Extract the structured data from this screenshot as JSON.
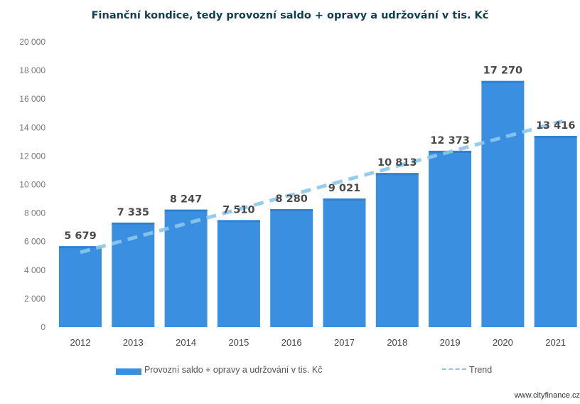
{
  "chart_data": {
    "type": "bar",
    "title": "Finanční kondice, tedy provozní saldo + opravy a udržování v tis. Kč",
    "categories": [
      "2012",
      "2013",
      "2014",
      "2015",
      "2016",
      "2017",
      "2018",
      "2019",
      "2020",
      "2021"
    ],
    "series": [
      {
        "name": "Provozní saldo + opravy a udržování v tis. Kč",
        "values": [
          5679,
          7335,
          8247,
          7510,
          8280,
          9021,
          10813,
          12373,
          17270,
          13416
        ],
        "labels": [
          "5 679",
          "7 335",
          "8 247",
          "7 510",
          "8 280",
          "9 021",
          "10 813",
          "12 373",
          "17 270",
          "13 416"
        ],
        "color": "#3b8fe0"
      }
    ],
    "trend": {
      "name": "Trend",
      "start": 5250,
      "end": 14450,
      "color": "#8cc8ea"
    },
    "ylim": [
      0,
      20000
    ],
    "yticks": [
      0,
      2000,
      4000,
      6000,
      8000,
      10000,
      12000,
      14000,
      16000,
      18000,
      20000
    ],
    "ytick_labels": [
      "0",
      "2 000",
      "4 000",
      "6 000",
      "8 000",
      "10 000",
      "12 000",
      "14 000",
      "16 000",
      "18 000",
      "20 000"
    ],
    "grid": false,
    "legend_position": "bottom"
  },
  "source": "www.cityfinance.cz"
}
